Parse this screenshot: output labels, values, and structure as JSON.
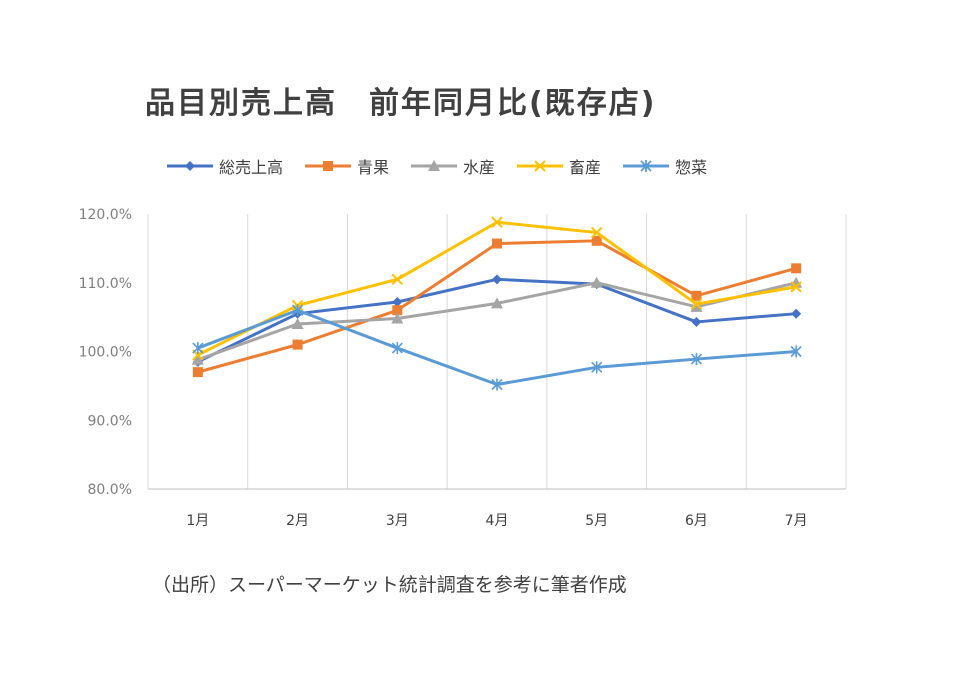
{
  "chart_data": {
    "type": "line",
    "title": "品目別売上高　前年同月比(既存店)",
    "categories": [
      "1月",
      "2月",
      "3月",
      "4月",
      "5月",
      "6月",
      "7月"
    ],
    "ylim": [
      80,
      120
    ],
    "yticks": [
      80,
      90,
      100,
      110,
      120
    ],
    "ytick_labels": [
      "80.0%",
      "90.0%",
      "100.0%",
      "110.0%",
      "120.0%"
    ],
    "grid": "vertical",
    "legend_position": "top",
    "series": [
      {
        "name": "総売上高",
        "color": "#4472c4",
        "marker": "diamond",
        "values": [
          98.5,
          105.5,
          107.2,
          110.5,
          109.8,
          104.3,
          105.5
        ]
      },
      {
        "name": "青果",
        "color": "#ed7d31",
        "marker": "square",
        "values": [
          97.0,
          101.0,
          106.0,
          115.7,
          116.1,
          108.1,
          112.1
        ]
      },
      {
        "name": "水産",
        "color": "#a5a5a5",
        "marker": "triangle",
        "values": [
          98.8,
          104.0,
          104.8,
          107.0,
          110.0,
          106.5,
          110.0
        ]
      },
      {
        "name": "畜産",
        "color": "#ffc000",
        "marker": "x",
        "values": [
          99.5,
          106.7,
          110.5,
          118.8,
          117.3,
          106.9,
          109.4
        ]
      },
      {
        "name": "惣菜",
        "color": "#5b9bd5",
        "marker": "asterisk",
        "values": [
          100.5,
          106.0,
          100.5,
          95.2,
          97.7,
          98.9,
          100.0
        ]
      }
    ]
  },
  "source_note": "（出所）スーパーマーケット統計調査を参考に筆者作成"
}
